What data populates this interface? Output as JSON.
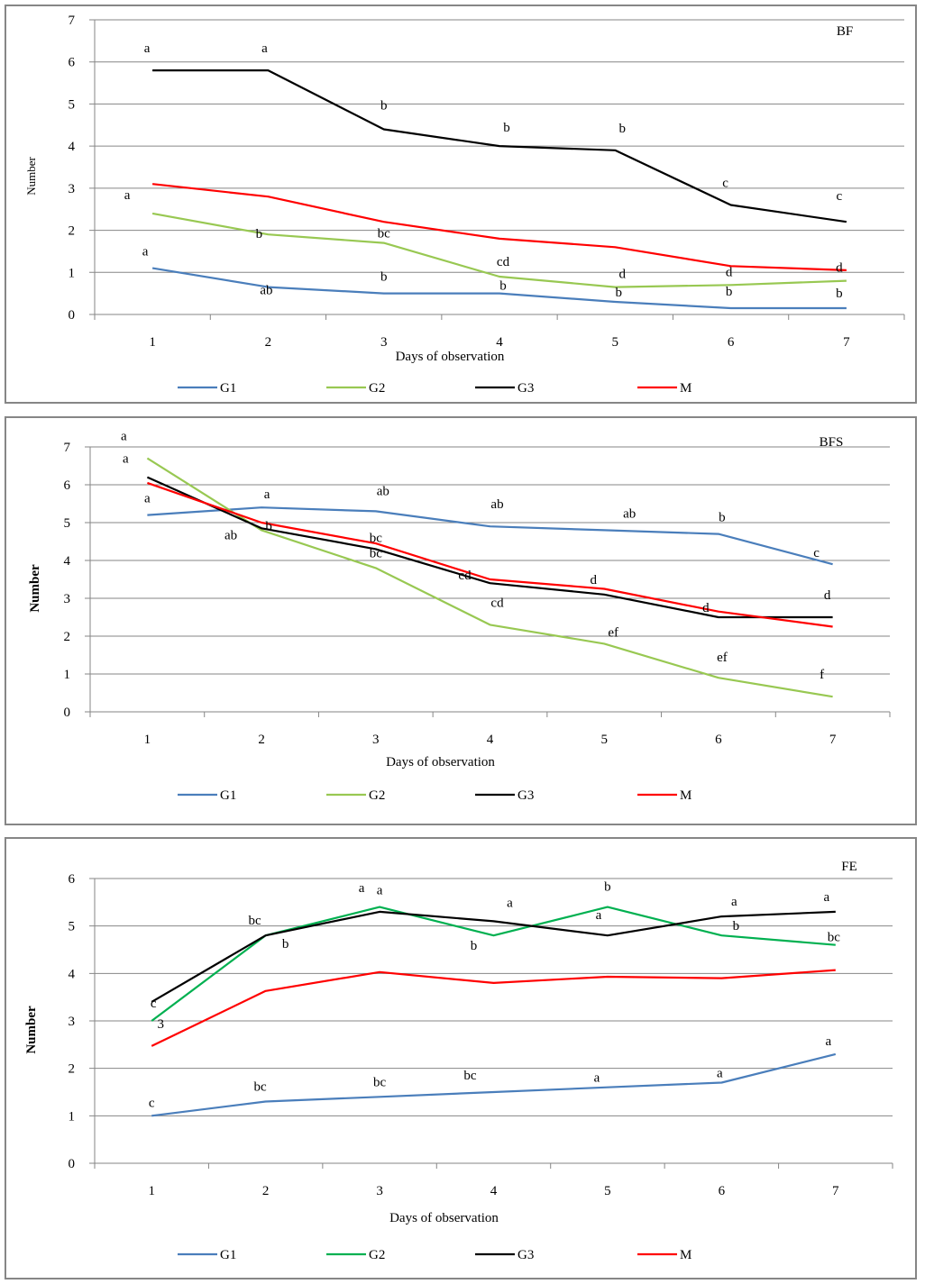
{
  "chart_data": [
    {
      "type": "line",
      "title": "BF",
      "xlabel": "Days of observation",
      "ylabel": "Number",
      "ylim": [
        0,
        7
      ],
      "yticks": [
        0,
        1,
        2,
        3,
        4,
        5,
        6,
        7
      ],
      "categories": [
        "1",
        "2",
        "3",
        "4",
        "5",
        "6",
        "7"
      ],
      "grid": true,
      "legend": "bottom",
      "series": [
        {
          "name": "G1",
          "color": "#4a7ebb",
          "values": [
            1.1,
            0.65,
            0.5,
            0.5,
            0.3,
            0.15,
            0.15
          ],
          "letters": [
            "a",
            "ab",
            "b",
            "b",
            "b",
            "b",
            "b"
          ]
        },
        {
          "name": "G2",
          "color": "#98c852",
          "values": [
            2.4,
            1.9,
            1.7,
            0.9,
            0.65,
            0.7,
            0.8
          ],
          "letters": [
            "a",
            "b",
            "bc",
            "cd",
            "d",
            "d",
            "d"
          ]
        },
        {
          "name": "G3",
          "color": "#000000",
          "values": [
            5.8,
            5.8,
            4.4,
            4.0,
            3.9,
            2.6,
            2.2
          ],
          "letters": [
            "a",
            "a",
            "b",
            "b",
            "b",
            "c",
            "c"
          ]
        },
        {
          "name": "M",
          "color": "#ff0000",
          "values": [
            3.1,
            2.8,
            2.2,
            1.8,
            1.6,
            1.15,
            1.05
          ],
          "letters": []
        }
      ]
    },
    {
      "type": "line",
      "title": "BFS",
      "xlabel": "Days of observation",
      "ylabel": "Number",
      "ylim": [
        0,
        7
      ],
      "yticks": [
        0,
        1,
        2,
        3,
        4,
        5,
        6,
        7
      ],
      "categories": [
        "1",
        "2",
        "3",
        "4",
        "5",
        "6",
        "7"
      ],
      "grid": true,
      "legend": "bottom",
      "series": [
        {
          "name": "G1",
          "color": "#4a7ebb",
          "values": [
            5.2,
            5.4,
            5.3,
            4.9,
            4.8,
            4.7,
            3.9
          ],
          "letters": [
            "a",
            "a",
            "ab",
            "ab",
            "ab",
            "b",
            "c"
          ]
        },
        {
          "name": "G2",
          "color": "#98c852",
          "values": [
            6.7,
            4.8,
            3.8,
            2.3,
            1.8,
            0.9,
            0.4
          ],
          "letters": [
            "a",
            "ab",
            "bc",
            "cd",
            "ef",
            "ef",
            "f"
          ]
        },
        {
          "name": "G3",
          "color": "#000000",
          "values": [
            6.2,
            4.85,
            4.3,
            3.4,
            3.1,
            2.5,
            2.5
          ],
          "letters": [
            "a",
            "b",
            "bc",
            "cd",
            "d",
            "d",
            "d"
          ]
        },
        {
          "name": "M",
          "color": "#ff0000",
          "values": [
            6.05,
            5.0,
            4.45,
            3.5,
            3.25,
            2.65,
            2.25
          ],
          "letters": []
        }
      ]
    },
    {
      "type": "line",
      "title": "FE",
      "xlabel": "Days of observation",
      "ylabel": "Number",
      "ylim": [
        0,
        6
      ],
      "yticks": [
        0,
        1,
        2,
        3,
        4,
        5,
        6
      ],
      "categories": [
        "1",
        "2",
        "3",
        "4",
        "5",
        "6",
        "7"
      ],
      "grid": true,
      "legend": "bottom",
      "series": [
        {
          "name": "G1",
          "color": "#4a7ebb",
          "values": [
            1.0,
            1.3,
            1.4,
            1.5,
            1.6,
            1.7,
            2.3
          ],
          "letters": [
            "c",
            "bc",
            "bc",
            "bc",
            "a",
            "a",
            "a"
          ]
        },
        {
          "name": "G2",
          "color": "#00b050",
          "values": [
            3.0,
            4.8,
            5.4,
            4.8,
            5.4,
            4.8,
            4.6
          ],
          "letters": [
            "3",
            "b",
            "a",
            "b",
            "b",
            "b",
            "bc"
          ]
        },
        {
          "name": "G3",
          "color": "#000000",
          "values": [
            3.4,
            4.8,
            5.3,
            5.1,
            4.8,
            5.2,
            5.3
          ],
          "letters": [
            "c",
            "bc",
            "a",
            "a",
            "a",
            "a",
            "a"
          ]
        },
        {
          "name": "M",
          "color": "#ff0000",
          "values": [
            2.47,
            3.63,
            4.03,
            3.8,
            3.93,
            3.9,
            4.07
          ],
          "letters": []
        }
      ]
    }
  ]
}
